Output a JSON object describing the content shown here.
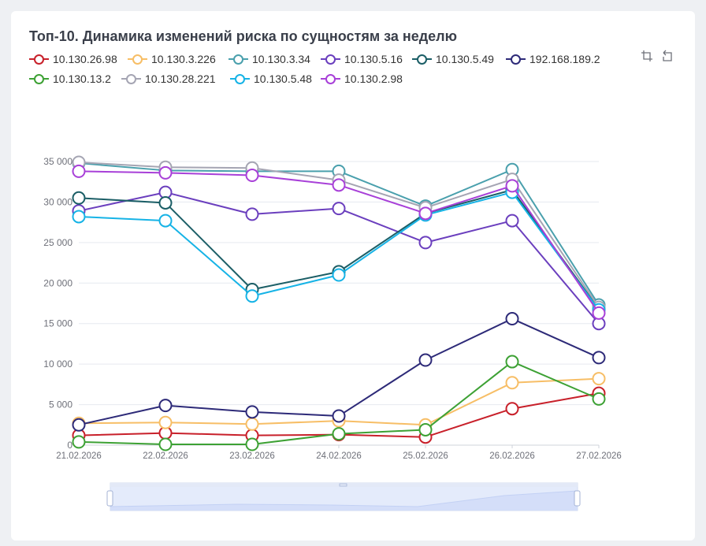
{
  "chart_data": {
    "type": "line",
    "title": "Топ-10. Динамика изменений риска по сущностям за неделю",
    "categories": [
      "21.02.2026",
      "22.02.2026",
      "23.02.2026",
      "24.02.2026",
      "25.02.2026",
      "26.02.2026",
      "27.02.2026"
    ],
    "y_ticks": [
      "0",
      "5 000",
      "10 000",
      "15 000",
      "20 000",
      "25 000",
      "30 000",
      "35 000"
    ],
    "ylim": [
      0,
      35000
    ],
    "grid": true,
    "legend_position": "top-left",
    "series": [
      {
        "name": "10.130.26.98",
        "color": "#c8202a",
        "values": [
          1200,
          1500,
          1200,
          1300,
          1000,
          4500,
          6400
        ]
      },
      {
        "name": "10.130.3.226",
        "color": "#f7be66",
        "values": [
          2700,
          2800,
          2600,
          3000,
          2500,
          7700,
          8200
        ]
      },
      {
        "name": "10.130.3.34",
        "color": "#4aa0ad",
        "values": [
          34800,
          33900,
          33800,
          33800,
          29500,
          34000,
          17300
        ]
      },
      {
        "name": "10.130.5.16",
        "color": "#6b3fbe",
        "values": [
          28900,
          31200,
          28500,
          29200,
          25000,
          27700,
          15000
        ]
      },
      {
        "name": "10.130.5.49",
        "color": "#1b5e66",
        "values": [
          30500,
          29900,
          19200,
          21400,
          28600,
          31500,
          16800
        ]
      },
      {
        "name": "192.168.189.2",
        "color": "#2d2a78",
        "values": [
          2500,
          4900,
          4100,
          3600,
          10500,
          15600,
          10800
        ]
      },
      {
        "name": "10.130.13.2",
        "color": "#3da134",
        "values": [
          400,
          100,
          100,
          1400,
          1900,
          10300,
          5700
        ]
      },
      {
        "name": "10.130.28.221",
        "color": "#a5a5b3",
        "values": [
          34900,
          34300,
          34200,
          32700,
          29300,
          32800,
          17000
        ]
      },
      {
        "name": "10.130.5.48",
        "color": "#16b3e6",
        "values": [
          28200,
          27700,
          18400,
          21000,
          28400,
          31200,
          16700
        ]
      },
      {
        "name": "10.130.2.98",
        "color": "#a840d8",
        "values": [
          33800,
          33600,
          33300,
          32100,
          28600,
          32000,
          16300
        ]
      }
    ]
  },
  "toolbox": {
    "zoom_icon": "crop-zoom-icon",
    "restore_icon": "undo-restore-icon"
  },
  "datazoom": {
    "start_percent": 0,
    "end_percent": 100
  }
}
